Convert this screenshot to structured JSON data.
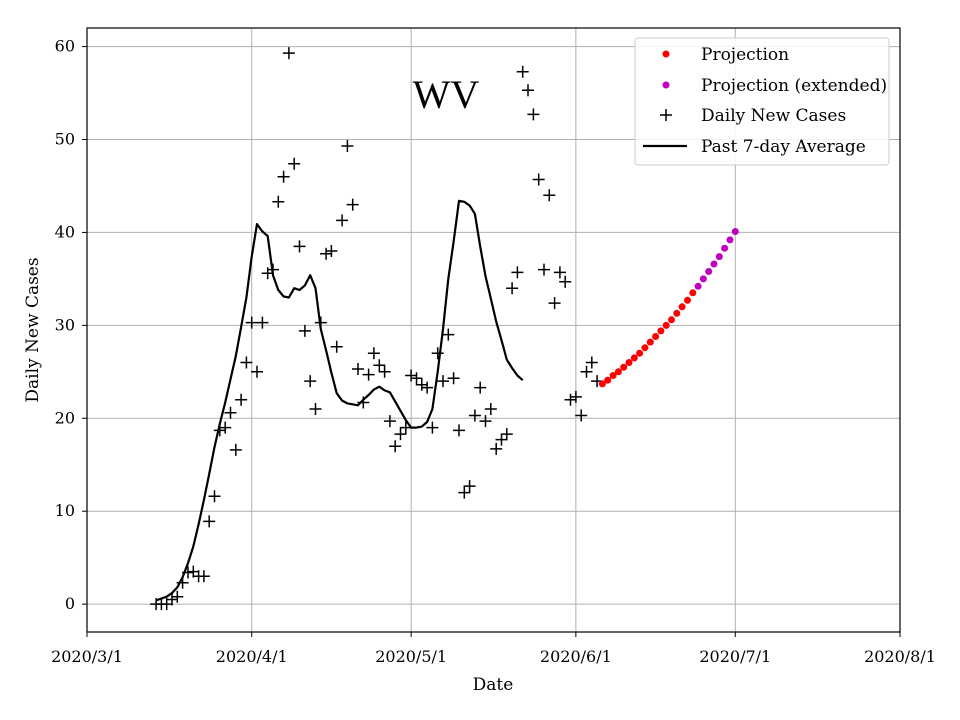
{
  "chart_data": {
    "type": "line",
    "title": "WV",
    "xlabel": "Date",
    "ylabel": "Daily New Cases",
    "grid": true,
    "legend_position": "top-right",
    "xlim": [
      "2020-03-01",
      "2020-08-01"
    ],
    "ylim": [
      -3,
      62
    ],
    "x_ticks": [
      {
        "date": "2020-03-01",
        "label": "2020/3/1"
      },
      {
        "date": "2020-04-01",
        "label": "2020/4/1"
      },
      {
        "date": "2020-05-01",
        "label": "2020/5/1"
      },
      {
        "date": "2020-06-01",
        "label": "2020/6/1"
      },
      {
        "date": "2020-07-01",
        "label": "2020/7/1"
      },
      {
        "date": "2020-08-01",
        "label": "2020/8/1"
      }
    ],
    "y_ticks": [
      0,
      10,
      20,
      30,
      40,
      50,
      60
    ],
    "legend": [
      {
        "key": "projection",
        "label": "Projection"
      },
      {
        "key": "projection_extended",
        "label": "Projection (extended)"
      },
      {
        "key": "daily",
        "label": "Daily New Cases"
      },
      {
        "key": "average",
        "label": "Past 7-day Average"
      }
    ],
    "colors": {
      "projection": "#ff0000",
      "projection_extended": "#bf00bf",
      "daily": "#000000",
      "average": "#000000"
    },
    "series": {
      "daily": {
        "start_date": "2020-03-14",
        "values": [
          0,
          0,
          0,
          0.5,
          0.8,
          2.3,
          3.4,
          3.5,
          3,
          3,
          8.9,
          11.6,
          18.7,
          19,
          20.6,
          16.6,
          22,
          26,
          30.3,
          25,
          30.3,
          35.6,
          36,
          43.3,
          46,
          59.3,
          47.4,
          38.5,
          29.4,
          24,
          21,
          30.3,
          37.7,
          38,
          27.7,
          41.3,
          49.3,
          43,
          25.3,
          21.7,
          24.7,
          27,
          25.7,
          25,
          19.7,
          17,
          18.3,
          19,
          24.6,
          24.3,
          23.6,
          23.3,
          19,
          27,
          24,
          29,
          24.3,
          18.7,
          12,
          12.7,
          20.3,
          23.3,
          19.7,
          21,
          16.7,
          17.7,
          18.3,
          34,
          35.7,
          57.3,
          55.3,
          52.7,
          45.7,
          36,
          44,
          32.4,
          35.7,
          34.7,
          22,
          22.3,
          20.3,
          25,
          26,
          24
        ]
      },
      "average": {
        "start_date": "2020-03-14",
        "values": [
          0.4,
          0.6,
          0.8,
          1.2,
          1.8,
          2.9,
          4.4,
          6.2,
          8.6,
          11.2,
          14.0,
          16.9,
          19.4,
          21.7,
          24.2,
          26.7,
          29.8,
          33.0,
          37.4,
          40.9,
          40.1,
          39.6,
          35.4,
          33.8,
          33.1,
          33.0,
          34.0,
          33.8,
          34.3,
          35.4,
          34.0,
          29.6,
          27.3,
          24.9,
          22.7,
          21.9,
          21.6,
          21.5,
          21.4,
          22.0,
          22.5,
          23.1,
          23.4,
          23.0,
          22.8,
          21.8,
          20.8,
          19.8,
          19.0,
          19.0,
          19.1,
          19.6,
          21.0,
          25.0,
          29.6,
          35.0,
          39.0,
          43.4,
          43.3,
          42.9,
          42.0,
          38.5,
          35.3,
          32.9,
          30.4,
          28.4,
          26.3,
          25.4,
          24.6,
          24.1
        ]
      },
      "projection": {
        "start_date": "2020-06-06",
        "values": [
          23.7,
          24.1,
          24.6,
          25.0,
          25.5,
          26.0,
          26.5,
          27.0,
          27.6,
          28.2,
          28.8,
          29.4,
          30.0,
          30.6,
          31.3,
          32.0,
          32.7,
          33.5
        ]
      },
      "projection_extended": {
        "start_date": "2020-06-24",
        "values": [
          34.2,
          35.0,
          35.8,
          36.6,
          37.4,
          38.3,
          39.2,
          40.1
        ]
      }
    }
  }
}
